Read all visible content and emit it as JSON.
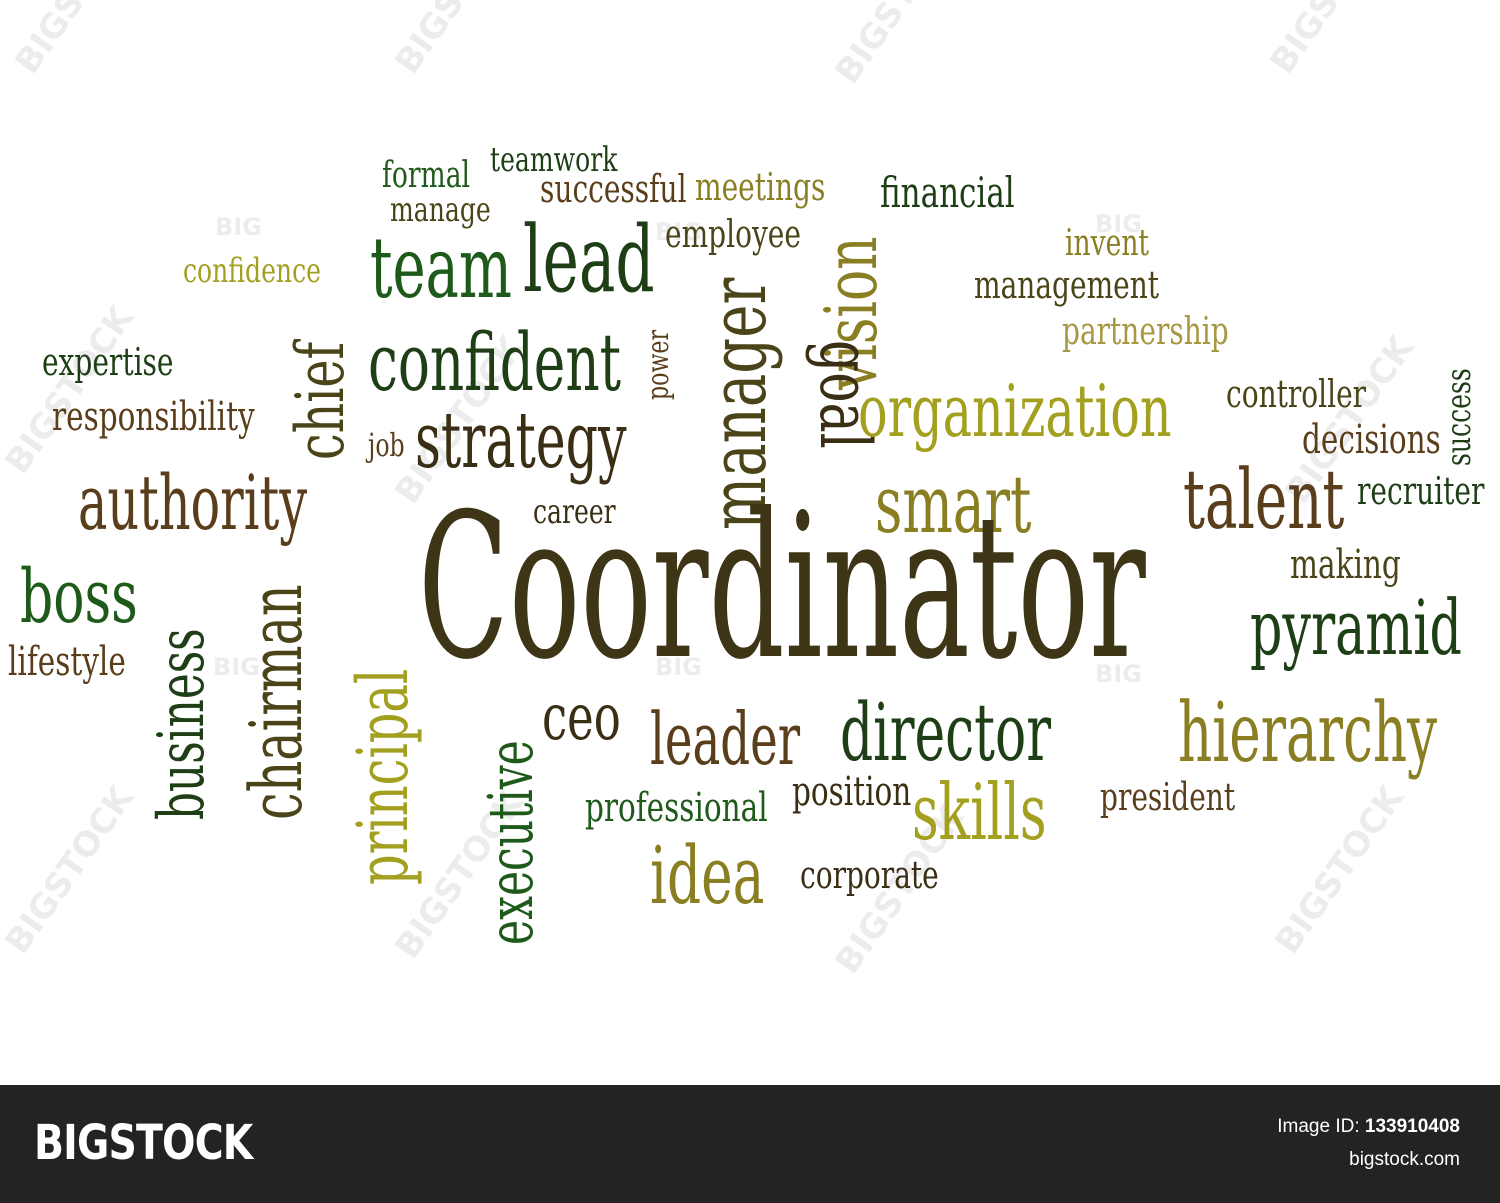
{
  "colors": {
    "dark_brown": "#3a2e14",
    "brown": "#5a3e1c",
    "olive_dark": "#4a4418",
    "olive": "#8a7e22",
    "yellow_olive": "#a3a020",
    "khaki": "#a89844",
    "green": "#1e5a1a",
    "dark_green": "#1e3e16",
    "footer_bg": "#232323"
  },
  "headline_word": "Coordinator",
  "words": [
    {
      "text": "formal",
      "color": "#1e5a1a"
    },
    {
      "text": "teamwork",
      "color": "#1e3e16"
    },
    {
      "text": "manage",
      "color": "#4a4418"
    },
    {
      "text": "successful",
      "color": "#5a3e1c"
    },
    {
      "text": "meetings",
      "color": "#8a7e22"
    },
    {
      "text": "financial",
      "color": "#1e3e16"
    },
    {
      "text": "employee",
      "color": "#4a4418"
    },
    {
      "text": "team",
      "color": "#1e5a1a"
    },
    {
      "text": "lead",
      "color": "#1e3e16"
    },
    {
      "text": "confidence",
      "color": "#a3a020"
    },
    {
      "text": "vision",
      "color": "#8a7e22"
    },
    {
      "text": "goal",
      "color": "#3a2e14"
    },
    {
      "text": "invent",
      "color": "#8a7e22"
    },
    {
      "text": "management",
      "color": "#4a4418"
    },
    {
      "text": "partnership",
      "color": "#a89844"
    },
    {
      "text": "manager",
      "color": "#4a4418"
    },
    {
      "text": "power",
      "color": "#5a3e1c"
    },
    {
      "text": "chief",
      "color": "#4a4418"
    },
    {
      "text": "confident",
      "color": "#1e3e16"
    },
    {
      "text": "expertise",
      "color": "#1e3e16"
    },
    {
      "text": "responsibility",
      "color": "#5a3e1c"
    },
    {
      "text": "job",
      "color": "#5a3e1c"
    },
    {
      "text": "strategy",
      "color": "#3a2e14"
    },
    {
      "text": "organization",
      "color": "#a3a020"
    },
    {
      "text": "controller",
      "color": "#4a4418"
    },
    {
      "text": "success",
      "color": "#1e3e16"
    },
    {
      "text": "decisions",
      "color": "#5a3e1c"
    },
    {
      "text": "authority",
      "color": "#5a3e1c"
    },
    {
      "text": "career",
      "color": "#3a2e14"
    },
    {
      "text": "smart",
      "color": "#8a7e22"
    },
    {
      "text": "talent",
      "color": "#5a3e1c"
    },
    {
      "text": "recruiter",
      "color": "#1e3e16"
    },
    {
      "text": "boss",
      "color": "#1e5a1a"
    },
    {
      "text": "business",
      "color": "#1e3e16"
    },
    {
      "text": "chairman",
      "color": "#4a4418"
    },
    {
      "text": "making",
      "color": "#4a4418"
    },
    {
      "text": "lifestyle",
      "color": "#5a3e1c"
    },
    {
      "text": "principal",
      "color": "#a3a020"
    },
    {
      "text": "pyramid",
      "color": "#1e3e16"
    },
    {
      "text": "executive",
      "color": "#1e5a1a"
    },
    {
      "text": "ceo",
      "color": "#3a2e14"
    },
    {
      "text": "leader",
      "color": "#5a3e1c"
    },
    {
      "text": "director",
      "color": "#1e3e16"
    },
    {
      "text": "hierarchy",
      "color": "#8a7e22"
    },
    {
      "text": "professional",
      "color": "#1e5a1a"
    },
    {
      "text": "position",
      "color": "#3a2e14"
    },
    {
      "text": "skills",
      "color": "#a3a020"
    },
    {
      "text": "president",
      "color": "#5a3e1c"
    },
    {
      "text": "idea",
      "color": "#8a7e22"
    },
    {
      "text": "corporate",
      "color": "#3a2e14"
    }
  ],
  "watermark_text": [
    "BIGSTOCK",
    "BIG"
  ],
  "footer": {
    "brand": "BIGSTOCK",
    "image_id_label": "Image ID:",
    "image_id": "133910408",
    "site": "bigstock.com"
  }
}
